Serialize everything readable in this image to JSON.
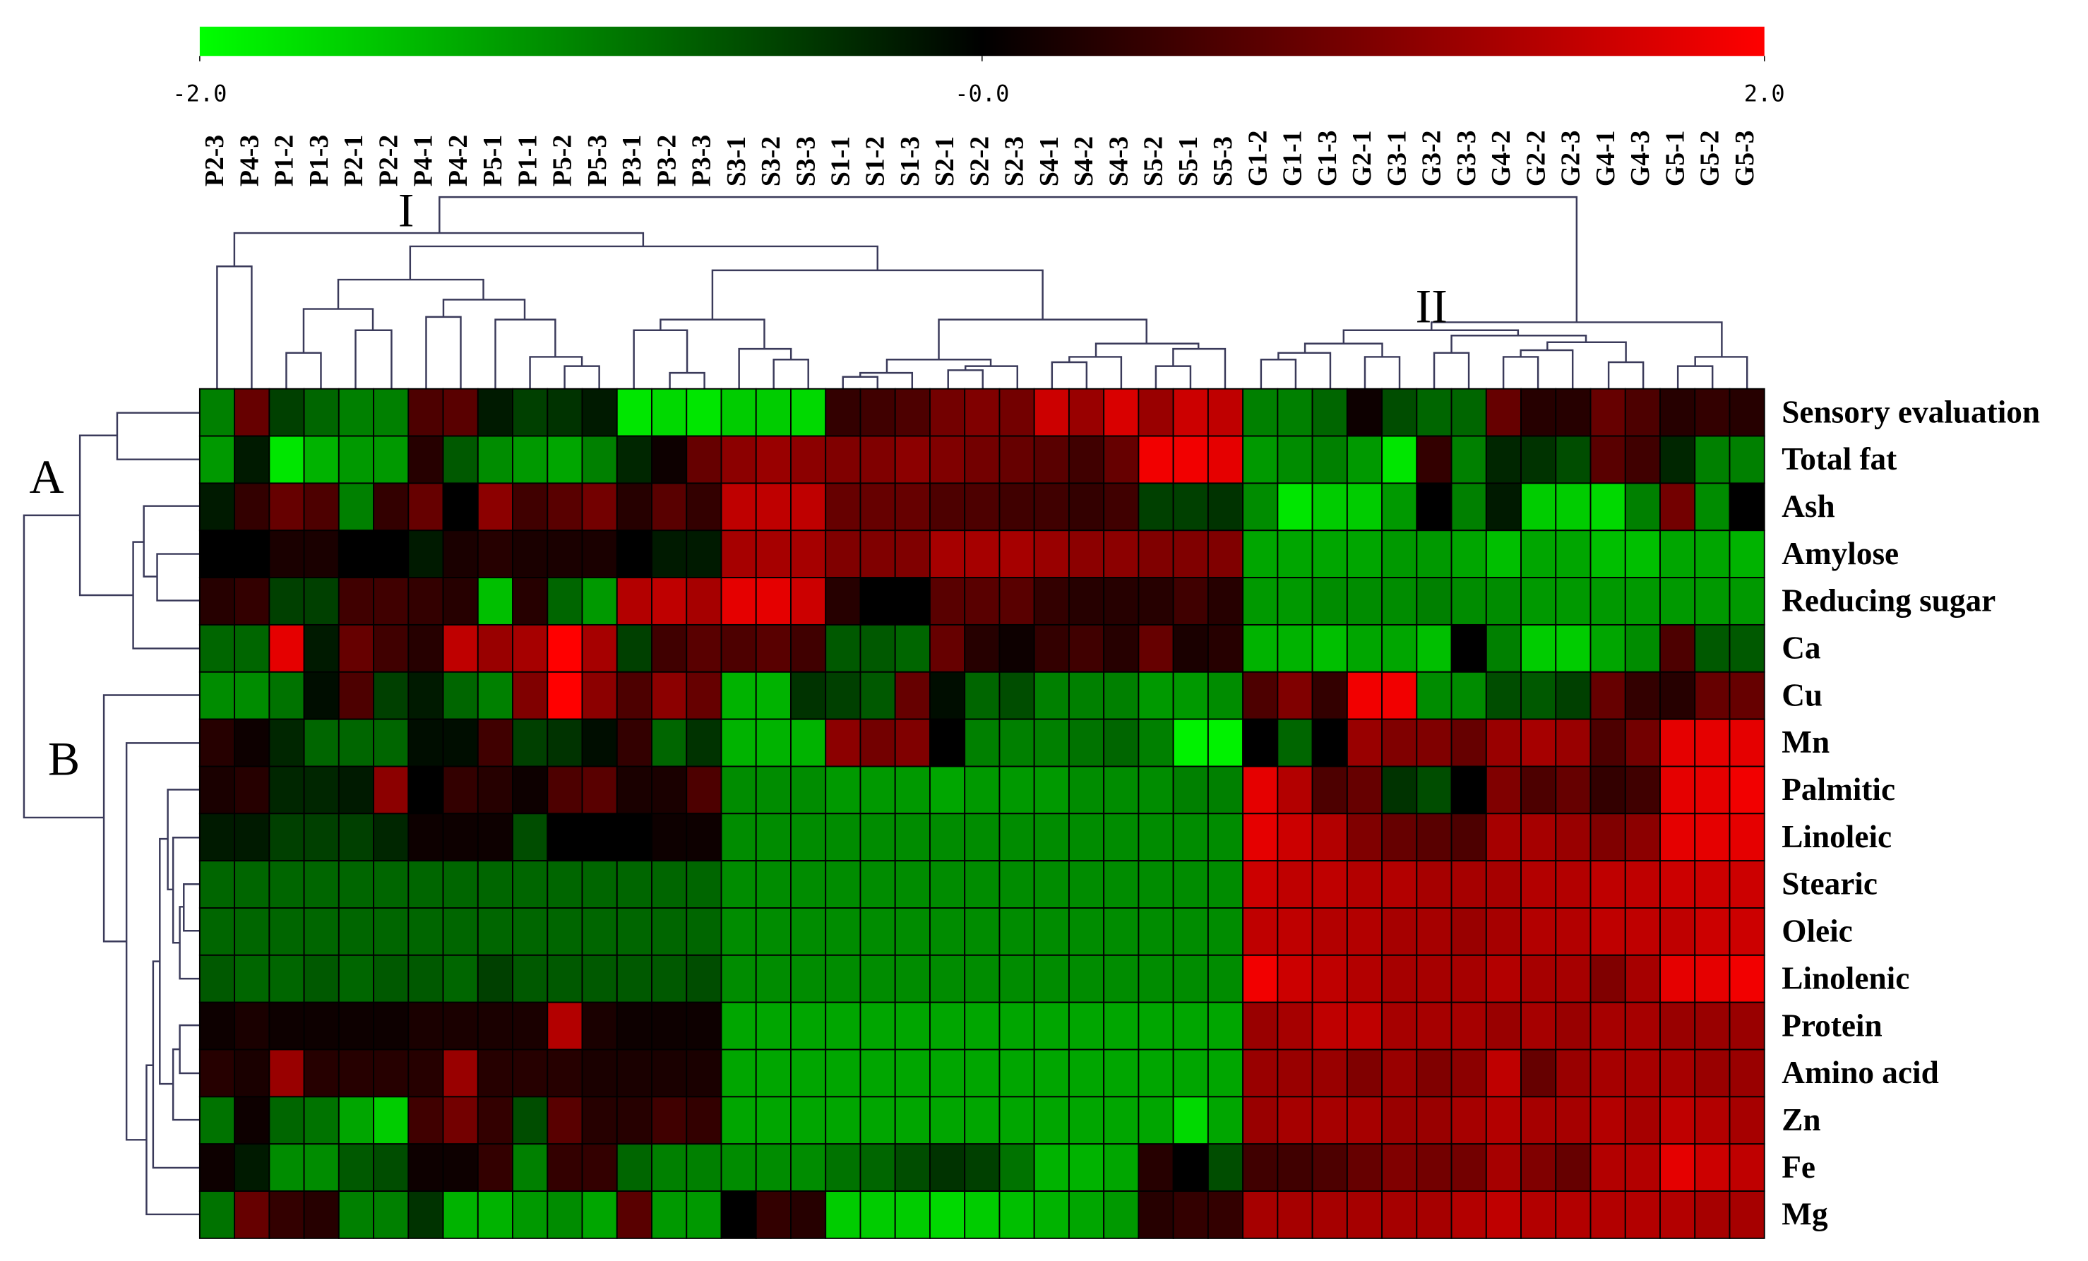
{
  "chart_data": {
    "type": "heatmap",
    "x": [
      "P2-3",
      "P4-3",
      "P1-2",
      "P1-3",
      "P2-1",
      "P2-2",
      "P4-1",
      "P4-2",
      "P5-1",
      "P1-1",
      "P5-2",
      "P5-3",
      "P3-1",
      "P3-2",
      "P3-3",
      "S3-1",
      "S3-2",
      "S3-3",
      "S1-1",
      "S1-2",
      "S1-3",
      "S2-1",
      "S2-2",
      "S2-3",
      "S4-1",
      "S4-2",
      "S4-3",
      "S5-2",
      "S5-1",
      "S5-3",
      "G1-2",
      "G1-1",
      "G1-3",
      "G2-1",
      "G3-1",
      "G3-2",
      "G3-3",
      "G4-2",
      "G2-2",
      "G2-3",
      "G4-1",
      "G4-3",
      "G5-1",
      "G5-2",
      "G5-3"
    ],
    "y": [
      "Sensory evaluation",
      "Total fat",
      "Ash",
      "Amylose",
      "Reducing sugar",
      "Ca",
      "Cu",
      "Mn",
      "Palmitic",
      "Linoleic",
      "Stearic",
      "Oleic",
      "Linolenic",
      "Protein",
      "Amino acid",
      "Zn",
      "Fe",
      "Mg"
    ],
    "values": [
      [
        -1,
        0.8,
        -0.5,
        -0.8,
        -1,
        -1,
        0.6,
        0.7,
        -0.2,
        -0.5,
        -0.4,
        -0.2,
        -1.8,
        -1.7,
        -1.8,
        -1.6,
        -1.6,
        -1.7,
        0.4,
        0.5,
        0.6,
        0.9,
        1,
        0.9,
        1.6,
        1.2,
        1.7,
        1.2,
        1.6,
        1.5,
        -1,
        -1,
        -0.8,
        0.1,
        -0.6,
        -0.8,
        -0.8,
        0.8,
        0.3,
        0.3,
        0.8,
        0.6,
        0.3,
        0.4,
        0.3
      ],
      [
        -1.2,
        -0.2,
        -1.8,
        -1.4,
        -1.2,
        -1.2,
        0.3,
        -0.7,
        -1.1,
        -1.2,
        -1.3,
        -1,
        -0.3,
        0.1,
        0.8,
        1.1,
        1.2,
        1.1,
        1,
        1,
        1.1,
        1,
        0.9,
        0.8,
        0.7,
        0.5,
        0.8,
        1.9,
        1.9,
        1.8,
        -1.2,
        -1.1,
        -1,
        -1.2,
        -1.8,
        0.4,
        -1,
        -0.3,
        -0.4,
        -0.6,
        0.7,
        0.5,
        -0.3,
        -1,
        -1
      ],
      [
        -0.2,
        0.4,
        0.8,
        0.6,
        -1,
        0.4,
        0.8,
        0,
        1.1,
        0.5,
        0.7,
        0.9,
        0.3,
        0.7,
        0.4,
        1.5,
        1.5,
        1.5,
        0.8,
        0.8,
        0.8,
        0.6,
        0.6,
        0.5,
        0.5,
        0.4,
        0.5,
        -0.5,
        -0.5,
        -0.4,
        -1.1,
        -1.8,
        -1.6,
        -1.6,
        -1.2,
        0,
        -1,
        -0.2,
        -1.6,
        -1.6,
        -1.7,
        -1,
        0.9,
        -1.1,
        0
      ],
      [
        0,
        0,
        0.2,
        0.2,
        0,
        0,
        -0.2,
        0.2,
        0.3,
        0.2,
        0.2,
        0.2,
        0,
        -0.2,
        -0.2,
        1.3,
        1.3,
        1.3,
        1,
        1,
        1,
        1.3,
        1.3,
        1.3,
        1.2,
        1.1,
        1.1,
        1,
        1,
        1,
        -1.3,
        -1.3,
        -1.3,
        -1.3,
        -1.2,
        -1.2,
        -1.3,
        -1.5,
        -1.3,
        -1.3,
        -1.5,
        -1.5,
        -1.3,
        -1.3,
        -1.4
      ],
      [
        0.3,
        0.4,
        -0.5,
        -0.5,
        0.5,
        0.5,
        0.4,
        0.3,
        -1.5,
        0.3,
        -0.8,
        -1.2,
        1.4,
        1.5,
        1.3,
        1.8,
        1.8,
        1.6,
        0.3,
        0,
        0,
        0.7,
        0.7,
        0.7,
        0.4,
        0.3,
        0.3,
        0.3,
        0.5,
        0.3,
        -1.2,
        -1.2,
        -1.1,
        -1.1,
        -1.1,
        -1,
        -1.1,
        -1.1,
        -1.2,
        -1.2,
        -1.2,
        -1.2,
        -1.2,
        -1.2,
        -1.2
      ],
      [
        -0.8,
        -0.8,
        1.8,
        -0.2,
        0.8,
        0.5,
        0.3,
        1.5,
        1.2,
        1.3,
        2,
        1.3,
        -0.5,
        0.5,
        0.7,
        0.6,
        0.7,
        0.5,
        -0.7,
        -0.7,
        -0.8,
        0.8,
        0.3,
        0.1,
        0.4,
        0.5,
        0.3,
        0.8,
        0.2,
        0.3,
        -1.4,
        -1.4,
        -1.5,
        -1.3,
        -1.3,
        -1.5,
        0,
        -1,
        -1.6,
        -1.6,
        -1.3,
        -1.1,
        0.6,
        -0.7,
        -0.7
      ],
      [
        -1.1,
        -1.1,
        -0.9,
        -0.1,
        0.6,
        -0.5,
        -0.2,
        -0.8,
        -1,
        1,
        2,
        1.1,
        0.6,
        1.1,
        0.8,
        -1.4,
        -1.4,
        -0.4,
        -0.5,
        -0.7,
        0.8,
        -0.1,
        -0.8,
        -0.6,
        -1,
        -1,
        -1,
        -1.2,
        -1.2,
        -1.1,
        0.6,
        1,
        0.4,
        1.9,
        1.9,
        -1.1,
        -1.1,
        -0.6,
        -0.7,
        -0.5,
        0.8,
        0.4,
        0.3,
        0.8,
        0.8
      ],
      [
        0.3,
        0.1,
        -0.3,
        -0.8,
        -0.8,
        -0.8,
        -0.1,
        -0.1,
        0.5,
        -0.5,
        -0.4,
        -0.1,
        0.4,
        -0.8,
        -0.4,
        -1.4,
        -1.4,
        -1.4,
        1.1,
        0.9,
        1,
        0,
        -1,
        -1,
        -1,
        -0.9,
        -0.8,
        -1,
        -1.9,
        -1.9,
        0,
        -0.8,
        0,
        1.2,
        1,
        1,
        0.8,
        1.2,
        1.3,
        1.2,
        0.6,
        0.9,
        1.8,
        1.8,
        1.8
      ],
      [
        0.2,
        0.3,
        -0.3,
        -0.3,
        -0.2,
        1.1,
        0,
        0.4,
        0.3,
        0.1,
        0.6,
        0.7,
        0.2,
        0.2,
        0.6,
        -1.1,
        -1.1,
        -1.1,
        -1.2,
        -1.2,
        -1.2,
        -1.3,
        -1.2,
        -1.2,
        -1.2,
        -1.1,
        -1.1,
        -1.1,
        -1,
        -1,
        1.8,
        1.4,
        0.6,
        0.8,
        -0.4,
        -0.6,
        0,
        1,
        0.6,
        0.8,
        0.4,
        0.5,
        1.8,
        1.8,
        1.9
      ],
      [
        -0.2,
        -0.2,
        -0.5,
        -0.5,
        -0.5,
        -0.3,
        0.1,
        0.1,
        0.1,
        -0.6,
        0,
        0,
        0,
        0.1,
        0.1,
        -1.1,
        -1.1,
        -1.1,
        -1.1,
        -1.1,
        -1.1,
        -1.1,
        -1.1,
        -1.1,
        -1.1,
        -1.1,
        -1.1,
        -1.1,
        -1.1,
        -1.1,
        1.8,
        1.6,
        1.4,
        1,
        0.8,
        0.7,
        0.6,
        1.3,
        1.3,
        1.2,
        1,
        1.1,
        1.8,
        1.8,
        1.8
      ],
      [
        -0.8,
        -0.8,
        -0.8,
        -0.8,
        -0.8,
        -0.8,
        -0.8,
        -0.8,
        -0.8,
        -0.8,
        -0.8,
        -0.8,
        -0.8,
        -0.8,
        -0.8,
        -1.1,
        -1.1,
        -1.1,
        -1.1,
        -1.1,
        -1.1,
        -1.1,
        -1.1,
        -1.1,
        -1.1,
        -1.1,
        -1.1,
        -1.1,
        -1.1,
        -1.1,
        1.6,
        1.5,
        1.5,
        1.4,
        1.4,
        1.3,
        1.3,
        1.3,
        1.4,
        1.4,
        1.5,
        1.5,
        1.6,
        1.6,
        1.6
      ],
      [
        -0.8,
        -0.8,
        -0.8,
        -0.8,
        -0.8,
        -0.8,
        -0.8,
        -0.8,
        -0.8,
        -0.8,
        -0.8,
        -0.8,
        -0.8,
        -0.8,
        -0.8,
        -1.1,
        -1.1,
        -1.1,
        -1.1,
        -1.1,
        -1.1,
        -1.1,
        -1.1,
        -1.1,
        -1.1,
        -1.1,
        -1.1,
        -1.1,
        -1.1,
        -1.1,
        1.5,
        1.5,
        1.4,
        1.4,
        1.3,
        1.3,
        1.2,
        1.3,
        1.4,
        1.4,
        1.5,
        1.5,
        1.5,
        1.6,
        1.6
      ],
      [
        -0.7,
        -0.8,
        -0.8,
        -0.7,
        -0.8,
        -0.7,
        -0.7,
        -0.8,
        -0.5,
        -0.7,
        -0.7,
        -0.7,
        -0.7,
        -0.7,
        -0.6,
        -1.1,
        -1.1,
        -1.1,
        -1.1,
        -1.1,
        -1.1,
        -1.1,
        -1.1,
        -1.1,
        -1.1,
        -1.1,
        -1.1,
        -1.1,
        -1.1,
        -1.1,
        1.9,
        1.6,
        1.5,
        1.4,
        1.3,
        1.3,
        1.3,
        1.4,
        1.3,
        1.3,
        1,
        1.3,
        1.8,
        1.8,
        1.9
      ],
      [
        0.1,
        0.2,
        0.1,
        0.1,
        0.1,
        0.1,
        0.2,
        0.2,
        0.2,
        0.2,
        1.4,
        0.2,
        0.1,
        0.1,
        0.1,
        -1.3,
        -1.3,
        -1.3,
        -1.3,
        -1.3,
        -1.3,
        -1.3,
        -1.3,
        -1.3,
        -1.3,
        -1.3,
        -1.3,
        -1.3,
        -1.3,
        -1.3,
        1.2,
        1.3,
        1.5,
        1.5,
        1.3,
        1.3,
        1.3,
        1.2,
        1.3,
        1.2,
        1.3,
        1.3,
        1.2,
        1.2,
        1.2
      ],
      [
        0.3,
        0.2,
        1.2,
        0.3,
        0.3,
        0.3,
        0.3,
        1.2,
        0.3,
        0.3,
        0.3,
        0.2,
        0.2,
        0.2,
        0.2,
        -1.3,
        -1.3,
        -1.3,
        -1.3,
        -1.3,
        -1.3,
        -1.3,
        -1.3,
        -1.3,
        -1.3,
        -1.3,
        -1.3,
        -1.3,
        -1.3,
        -1.3,
        1.2,
        1.2,
        1.2,
        1,
        1.2,
        1,
        1.1,
        1.5,
        0.8,
        1.2,
        1.3,
        1.3,
        1.3,
        1.2,
        1.2
      ],
      [
        -0.9,
        0.1,
        -0.8,
        -0.9,
        -1.3,
        -1.6,
        0.5,
        0.9,
        0.4,
        -0.6,
        0.7,
        0.3,
        0.3,
        0.5,
        0.4,
        -1.3,
        -1.3,
        -1.3,
        -1.3,
        -1.3,
        -1.3,
        -1.3,
        -1.3,
        -1.3,
        -1.3,
        -1.3,
        -1.3,
        -1.3,
        -1.7,
        -1.3,
        1.2,
        1.3,
        1.3,
        1.3,
        1.2,
        1.2,
        1.3,
        1.4,
        1.3,
        1.3,
        1.4,
        1.3,
        1.5,
        1.4,
        1.3
      ],
      [
        0.1,
        -0.2,
        -1.1,
        -1.1,
        -0.7,
        -0.6,
        0.1,
        0.1,
        0.4,
        -1,
        0.4,
        0.4,
        -0.8,
        -1,
        -1,
        -1.1,
        -1.1,
        -1.1,
        -0.9,
        -0.8,
        -0.6,
        -0.4,
        -0.5,
        -0.9,
        -1.4,
        -1.4,
        -1.3,
        0.3,
        0,
        -0.6,
        0.5,
        0.5,
        0.6,
        0.8,
        1,
        0.9,
        0.9,
        1.3,
        1,
        0.8,
        1.4,
        1.4,
        1.8,
        1.6,
        1.5
      ],
      [
        -0.9,
        0.8,
        0.4,
        0.3,
        -1,
        -1,
        -0.4,
        -1.4,
        -1.4,
        -1.2,
        -1.1,
        -1.3,
        0.7,
        -1.2,
        -1.2,
        0,
        0.4,
        0.3,
        -1.6,
        -1.6,
        -1.6,
        -1.7,
        -1.6,
        -1.5,
        -1.4,
        -1.3,
        -1.2,
        0.3,
        0.4,
        0.4,
        1.3,
        1.3,
        1.3,
        1.3,
        1.3,
        1.3,
        1.4,
        1.5,
        1.4,
        1.4,
        1.4,
        1.4,
        1.4,
        1.3,
        1.3
      ]
    ],
    "colors": [
      "#00ff00",
      "#000000",
      "#ff0000"
    ],
    "colorbar": {
      "lim": [
        -2,
        2
      ],
      "ticks": [
        {
          "value": -2,
          "label": "-2.0"
        },
        {
          "value": 0,
          "label": "-0.0"
        },
        {
          "value": 2,
          "label": "2.0"
        }
      ]
    },
    "annotations": [
      "I",
      "II",
      "A",
      "B"
    ]
  }
}
